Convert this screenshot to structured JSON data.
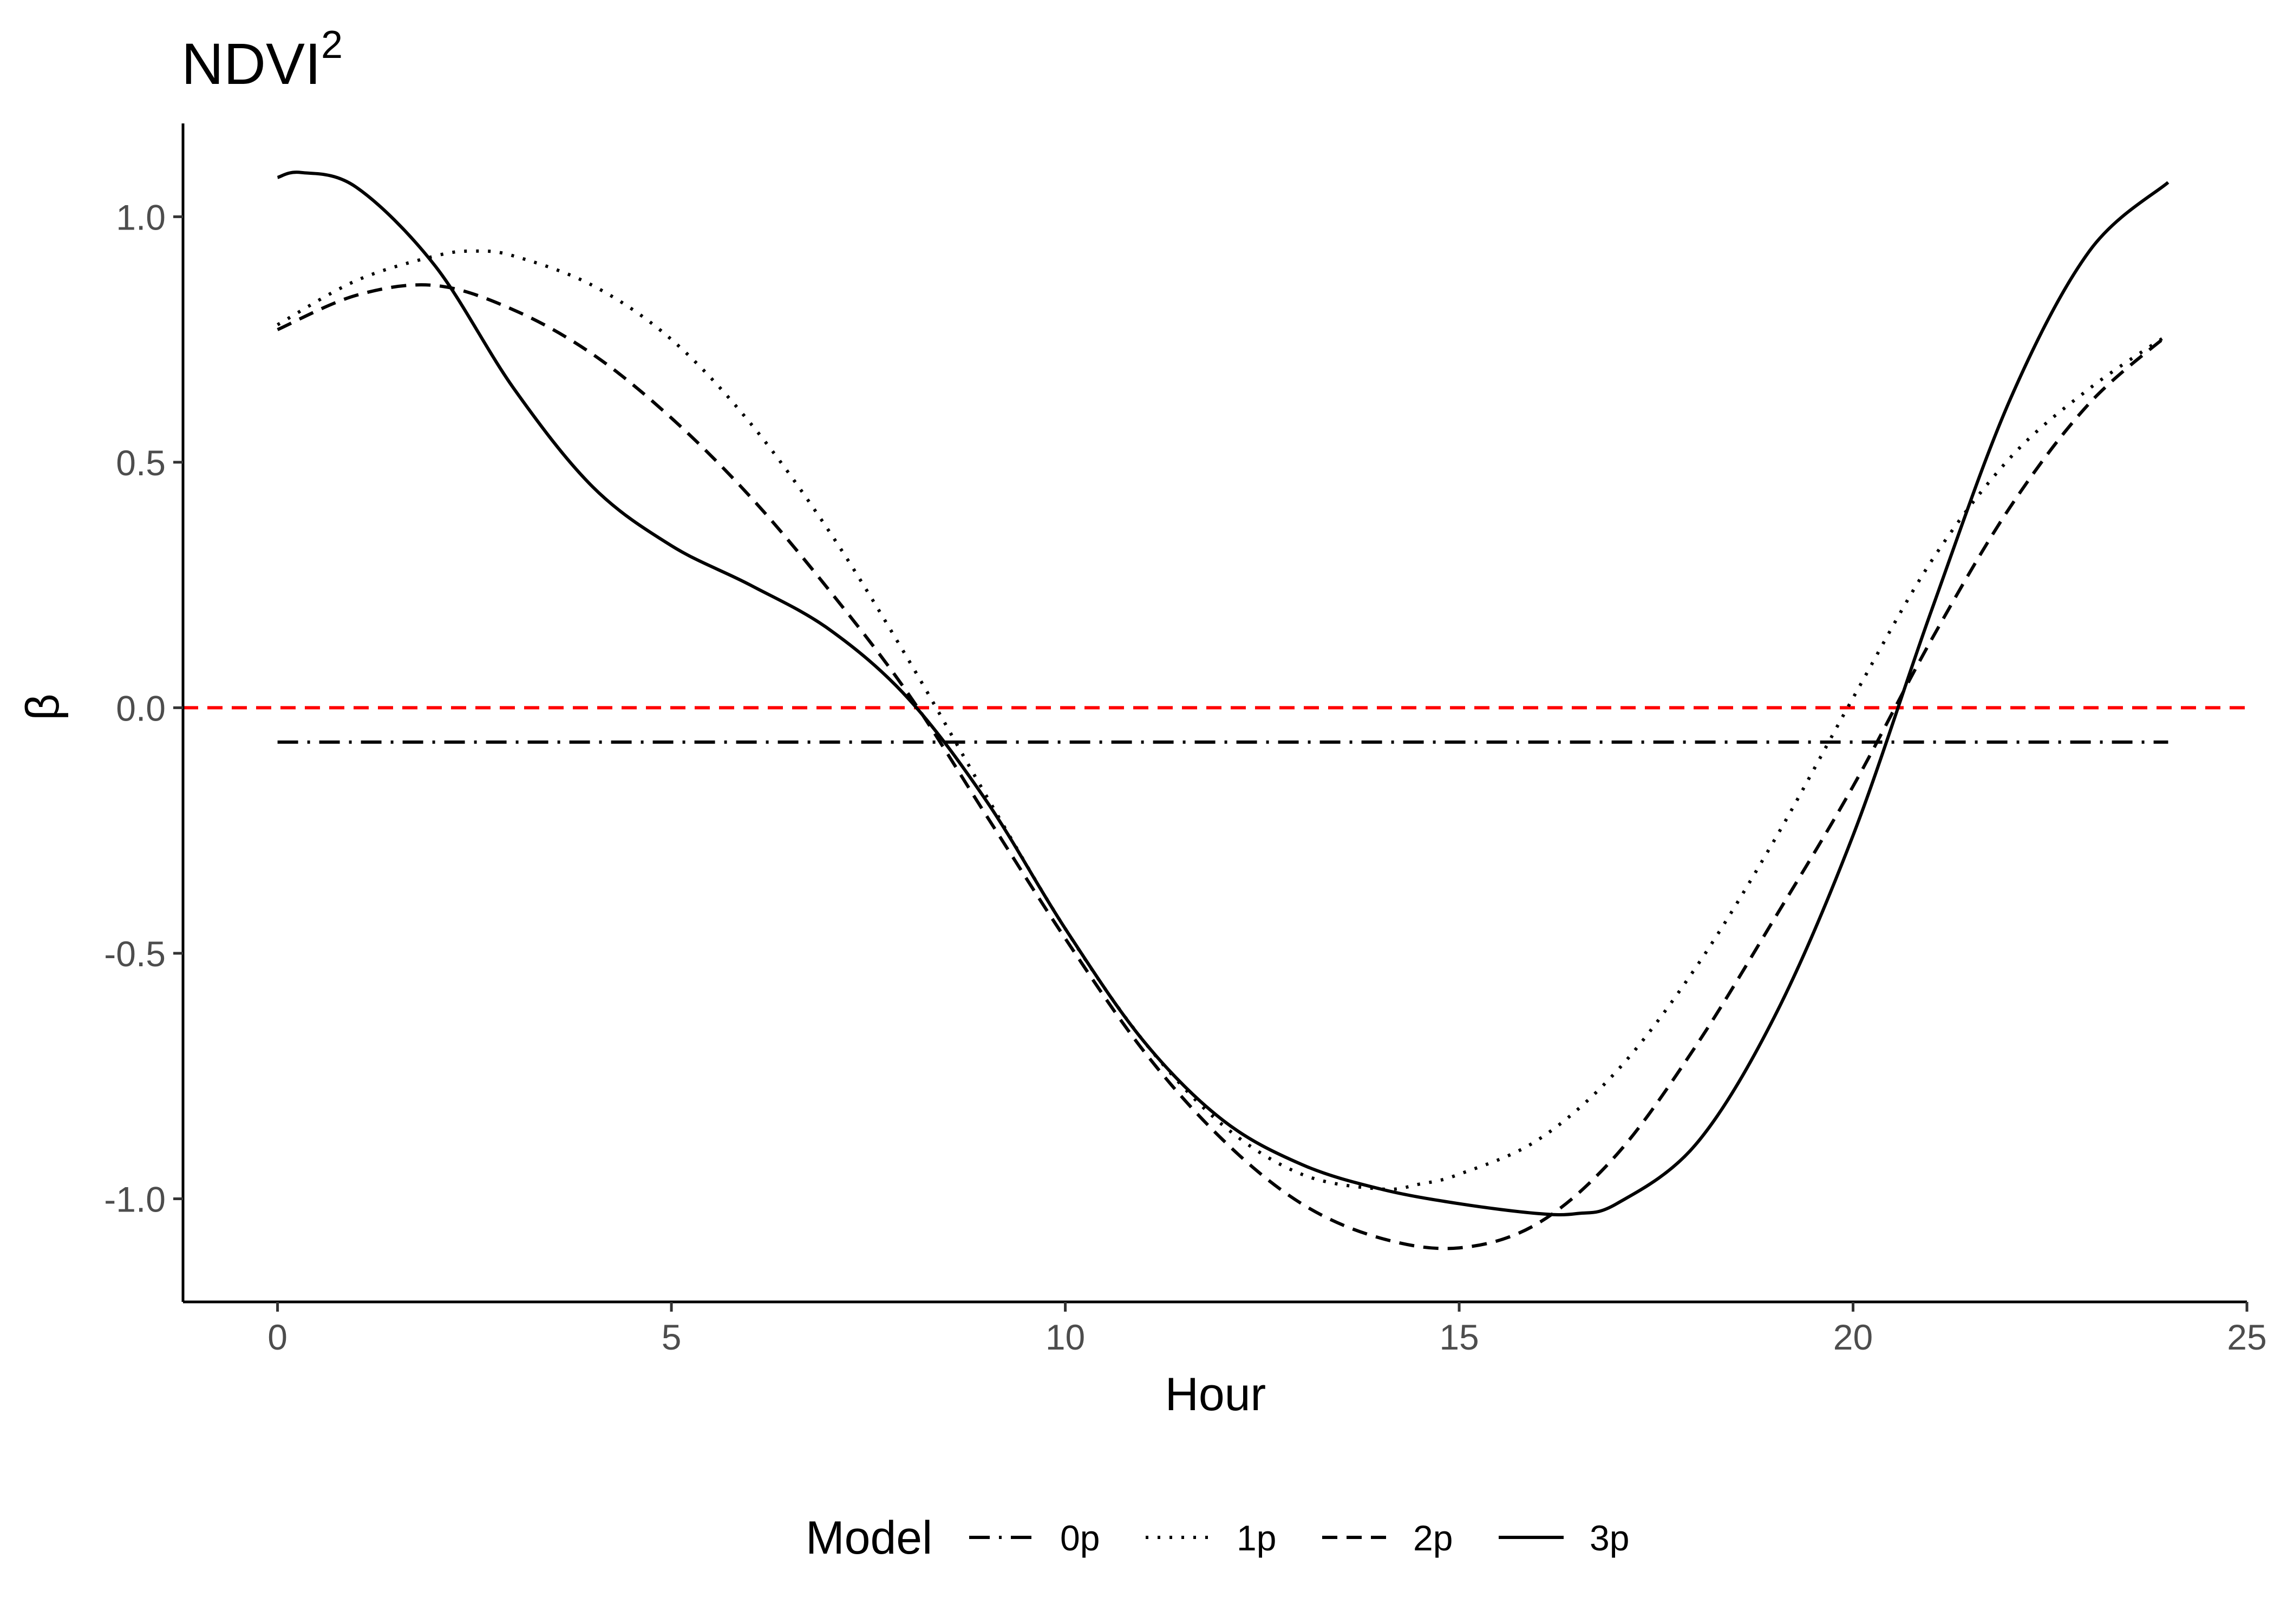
{
  "chart_data": {
    "type": "line",
    "title": "NDVI",
    "title_superscript": "2",
    "xlabel": "Hour",
    "ylabel": "β",
    "xlim": [
      -1.2,
      25
    ],
    "ylim": [
      -1.21,
      1.19
    ],
    "x_ticks": [
      0,
      5,
      10,
      15,
      20,
      25
    ],
    "y_ticks": [
      -1.0,
      -0.5,
      0.0,
      0.5,
      1.0
    ],
    "x_tick_labels": [
      "0",
      "5",
      "10",
      "15",
      "20",
      "25"
    ],
    "y_tick_labels": [
      "-1.0",
      "-0.5",
      "0.0",
      "0.5",
      "1.0"
    ],
    "grid": false,
    "reference_line": {
      "y": 0.0,
      "color": "#ff0000",
      "style": "dashed"
    },
    "legend": {
      "title": "Model",
      "position": "bottom"
    },
    "series": [
      {
        "name": "0p",
        "style": "dashdot",
        "x": [
          0,
          24
        ],
        "y": [
          -0.07,
          -0.07
        ]
      },
      {
        "name": "1p",
        "style": "dotted",
        "x": [
          0,
          1,
          2,
          2.5,
          3,
          4,
          5,
          6,
          7,
          8,
          9,
          10,
          11,
          12,
          13,
          14,
          14.5,
          15,
          16,
          17,
          18,
          19,
          20,
          21,
          22,
          23,
          24
        ],
        "y": [
          0.78,
          0.87,
          0.92,
          0.93,
          0.92,
          0.86,
          0.75,
          0.58,
          0.36,
          0.1,
          -0.18,
          -0.45,
          -0.68,
          -0.85,
          -0.95,
          -0.98,
          -0.97,
          -0.95,
          -0.88,
          -0.74,
          -0.53,
          -0.27,
          0.02,
          0.3,
          0.51,
          0.65,
          0.76
        ]
      },
      {
        "name": "2p",
        "style": "dashed",
        "x": [
          0,
          1,
          2,
          3,
          4,
          5,
          6,
          7,
          8,
          9,
          10,
          11,
          12,
          13,
          14,
          15,
          16,
          17,
          18,
          19,
          20,
          21,
          22,
          23,
          24
        ],
        "y": [
          0.77,
          0.84,
          0.86,
          0.81,
          0.72,
          0.59,
          0.43,
          0.24,
          0.03,
          -0.22,
          -0.47,
          -0.7,
          -0.88,
          -1.01,
          -1.08,
          -1.1,
          -1.05,
          -0.91,
          -0.69,
          -0.43,
          -0.16,
          0.14,
          0.41,
          0.62,
          0.76
        ]
      },
      {
        "name": "3p",
        "style": "solid",
        "x": [
          0,
          0.3,
          1,
          2,
          3,
          4,
          5,
          6,
          7,
          8,
          9,
          10,
          11,
          12,
          13,
          14,
          15,
          16,
          16.5,
          17,
          18,
          19,
          20,
          21,
          22,
          23,
          24
        ],
        "y": [
          1.08,
          1.09,
          1.06,
          0.9,
          0.65,
          0.45,
          0.33,
          0.25,
          0.16,
          0.02,
          -0.19,
          -0.45,
          -0.68,
          -0.84,
          -0.93,
          -0.98,
          -1.01,
          -1.03,
          -1.03,
          -1.01,
          -0.89,
          -0.63,
          -0.26,
          0.2,
          0.63,
          0.93,
          1.07
        ]
      }
    ]
  }
}
